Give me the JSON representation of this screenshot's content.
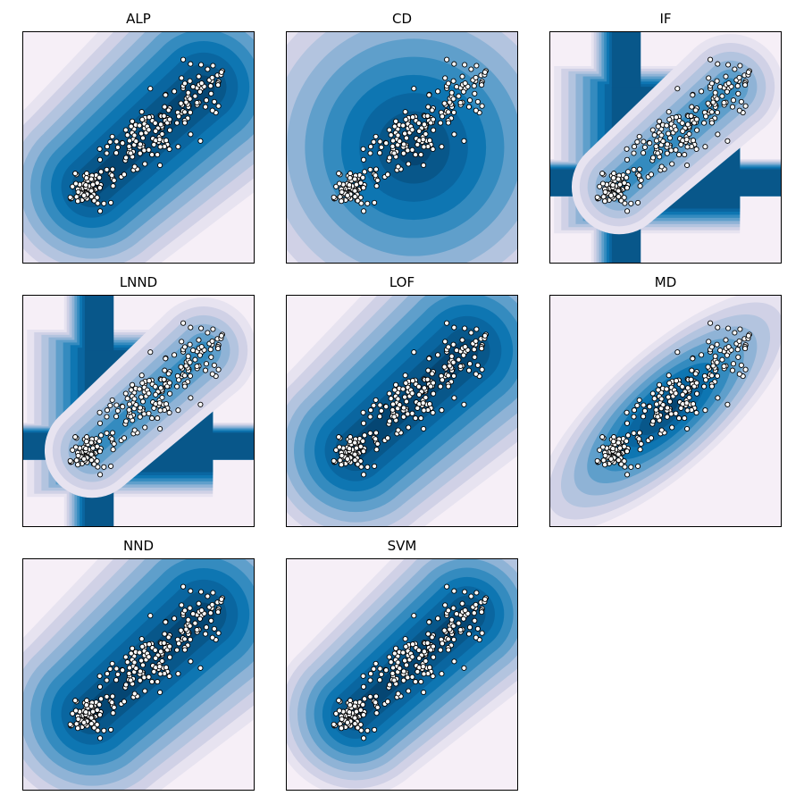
{
  "figure": {
    "colormap": [
      "#f6eff7",
      "#e7e3f0",
      "#d0d1e6",
      "#b3c4df",
      "#8fb3d6",
      "#5f9fcb",
      "#348bbf",
      "#0e76b2",
      "#0a66a0",
      "#08578a",
      "#054673"
    ],
    "marker_fill": "#ffffff",
    "marker_edge": "#000000",
    "frame_color": "#000000"
  },
  "chart_data": [
    {
      "type": "contour-scatter",
      "title": "ALP",
      "grid": false,
      "xticks": [],
      "yticks": [],
      "colormap": "PuBu"
    },
    {
      "type": "contour-scatter",
      "title": "CD",
      "grid": false,
      "xticks": [],
      "yticks": [],
      "colormap": "PuBu"
    },
    {
      "type": "contour-scatter",
      "title": "IF",
      "grid": false,
      "xticks": [],
      "yticks": [],
      "colormap": "PuBu"
    },
    {
      "type": "contour-scatter",
      "title": "LNND",
      "grid": false,
      "xticks": [],
      "yticks": [],
      "colormap": "PuBu"
    },
    {
      "type": "contour-scatter",
      "title": "LOF",
      "grid": false,
      "xticks": [],
      "yticks": [],
      "colormap": "PuBu"
    },
    {
      "type": "contour-scatter",
      "title": "MD",
      "grid": false,
      "xticks": [],
      "yticks": [],
      "colormap": "PuBu"
    },
    {
      "type": "contour-scatter",
      "title": "NND",
      "grid": false,
      "xticks": [],
      "yticks": [],
      "colormap": "PuBu"
    },
    {
      "type": "contour-scatter",
      "title": "SVM",
      "grid": false,
      "xticks": [],
      "yticks": [],
      "colormap": "PuBu"
    }
  ]
}
